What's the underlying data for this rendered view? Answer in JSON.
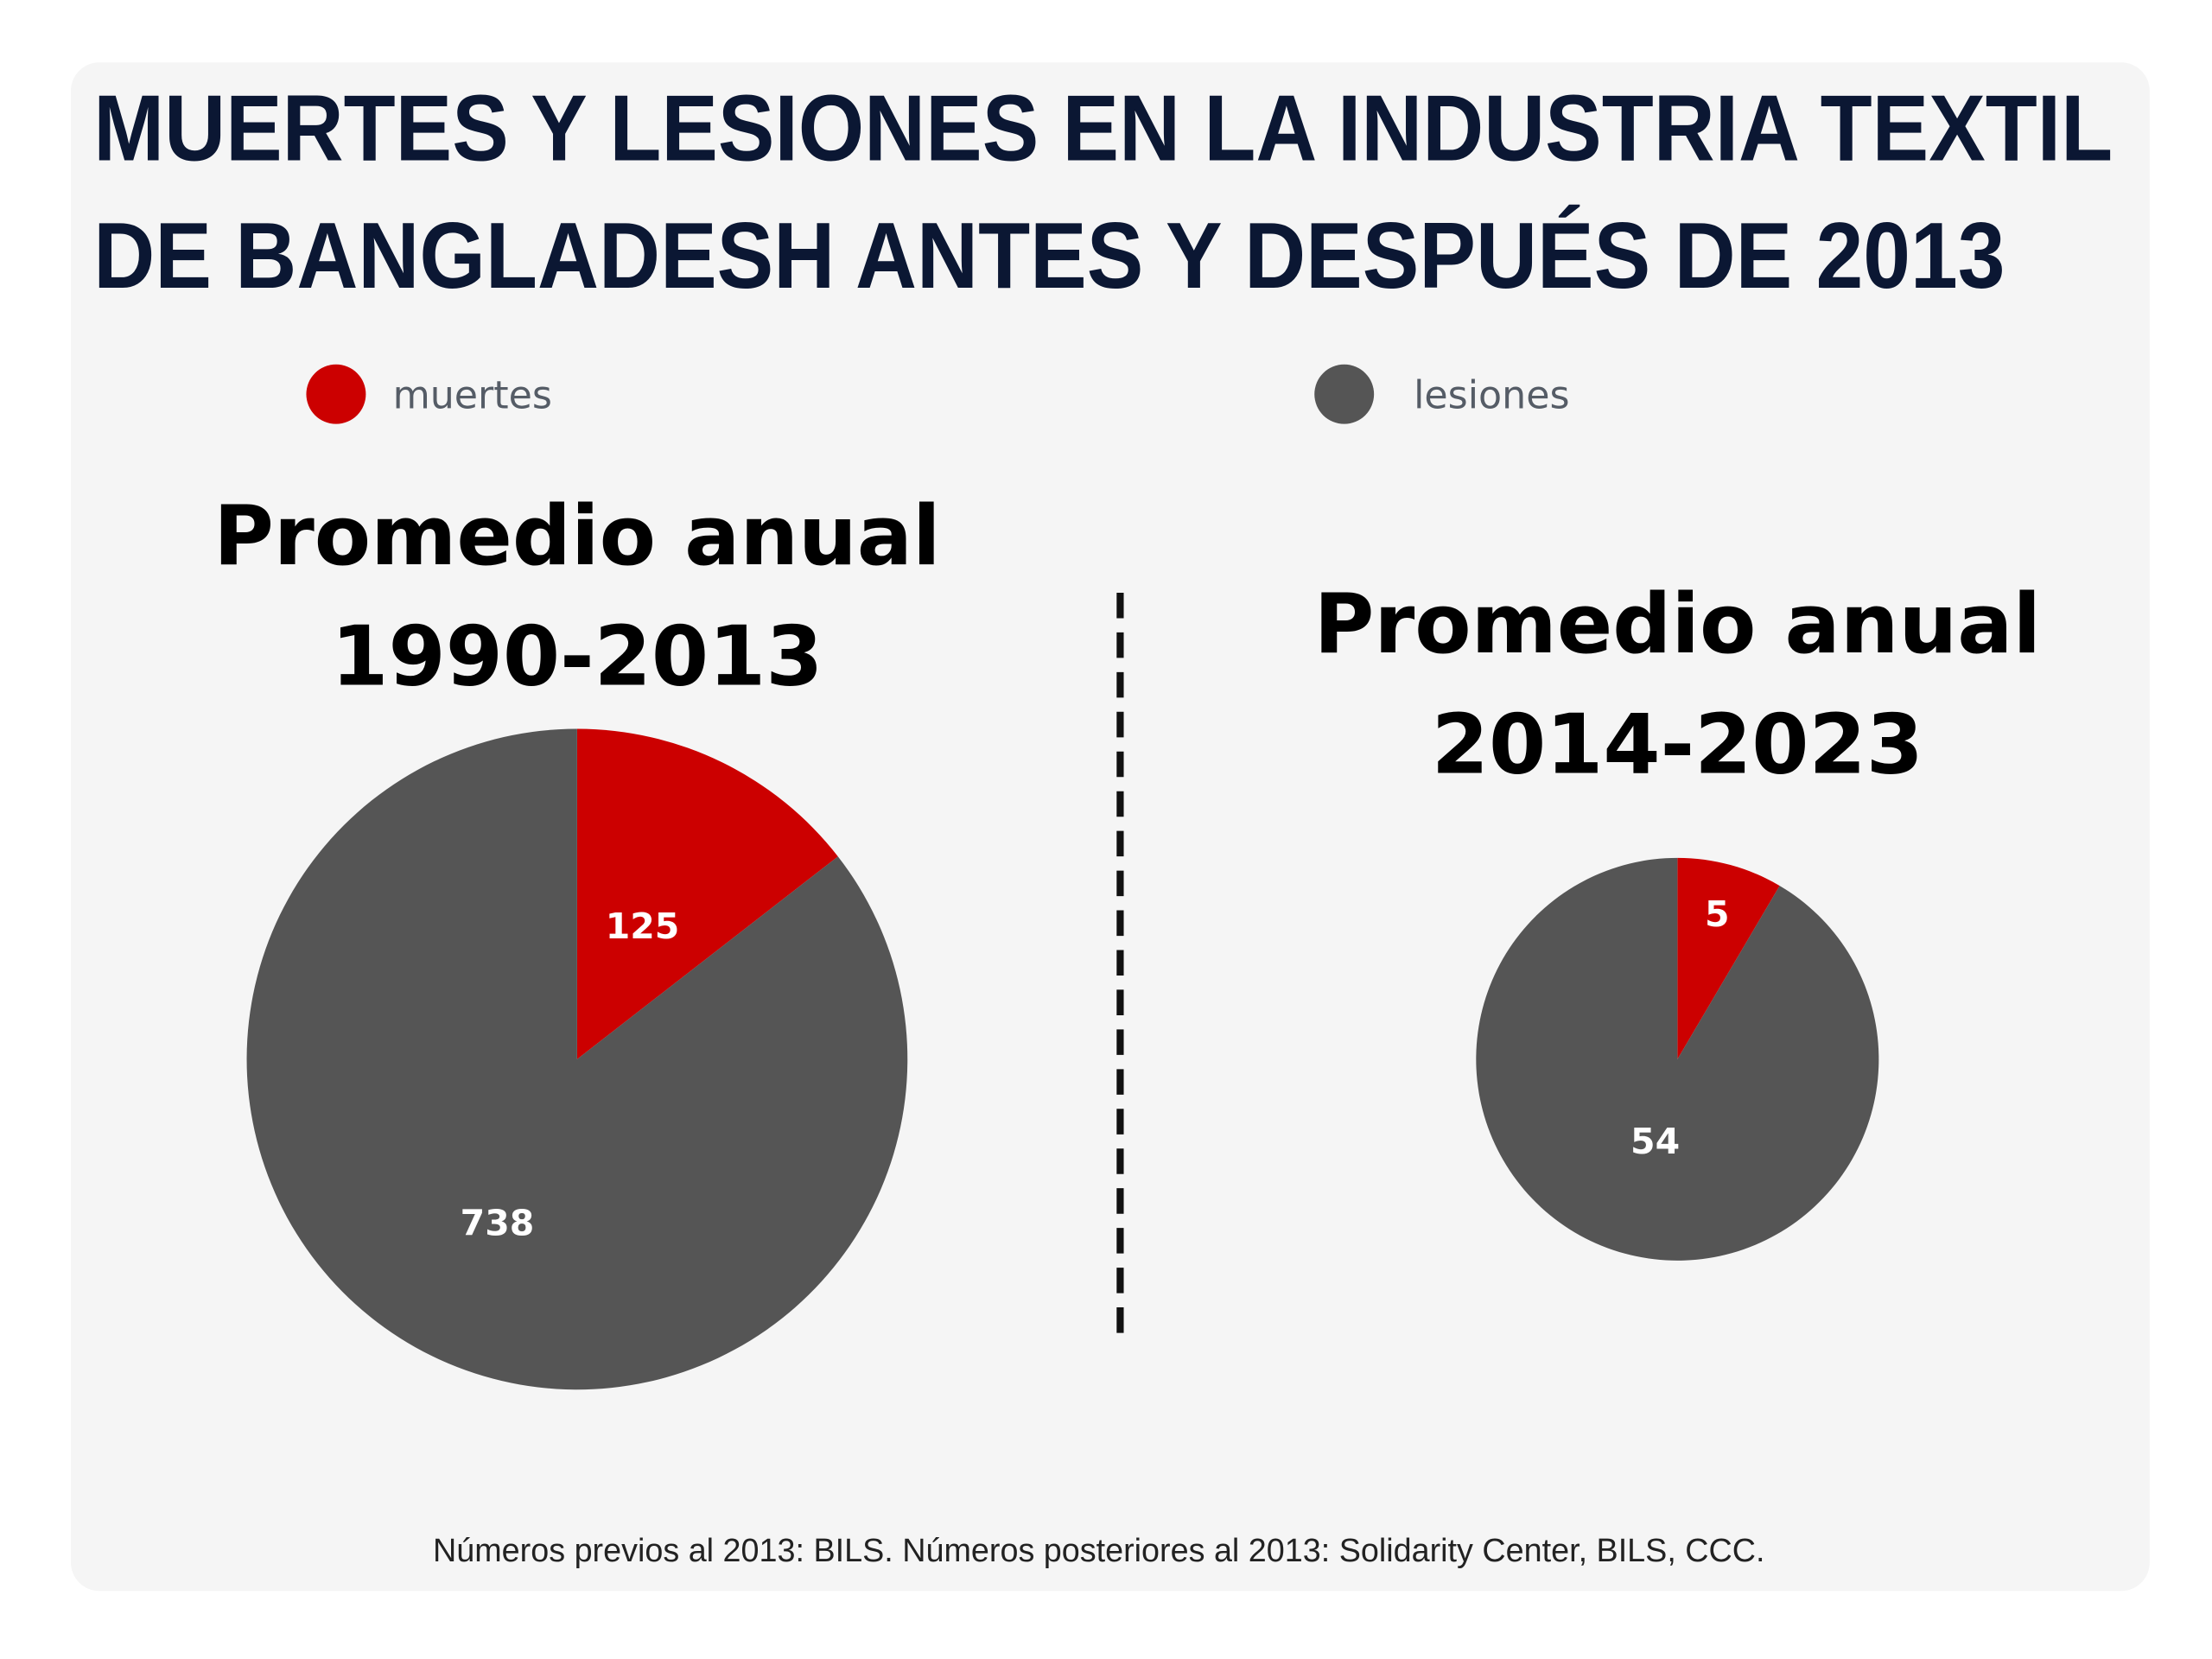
{
  "chart_data": [
    {
      "type": "pie",
      "title": "Promedio anual 1990-2013",
      "title_lines": [
        "Promedio anual",
        "1990-2013"
      ],
      "slices": [
        {
          "label": "muertes",
          "value": 125
        },
        {
          "label": "lesiones",
          "value": 738
        }
      ]
    },
    {
      "type": "pie",
      "title": "Promedio anual 2014-2023",
      "title_lines": [
        "Promedio anual",
        "2014-2023"
      ],
      "slices": [
        {
          "label": "muertes",
          "value": 5
        },
        {
          "label": "lesiones",
          "value": 54
        }
      ]
    }
  ],
  "header": {
    "title_lines": [
      "MUERTES Y LESIONES EN LA INDUSTRIA TEXTIL",
      "DE BANGLADESH ANTES Y DESPUÉS DE 2013"
    ]
  },
  "legend": [
    {
      "label": "muertes",
      "color": "#cc0000"
    },
    {
      "label": "lesiones",
      "color": "#555555"
    }
  ],
  "colors": {
    "muertes": "#cc0000",
    "lesiones": "#555555",
    "title": "#0b1733",
    "card": "#f5f5f5"
  },
  "source": "Números previos al 2013: BILS. Números posteriores al 2013: Solidarity Center, BILS,  CCC."
}
